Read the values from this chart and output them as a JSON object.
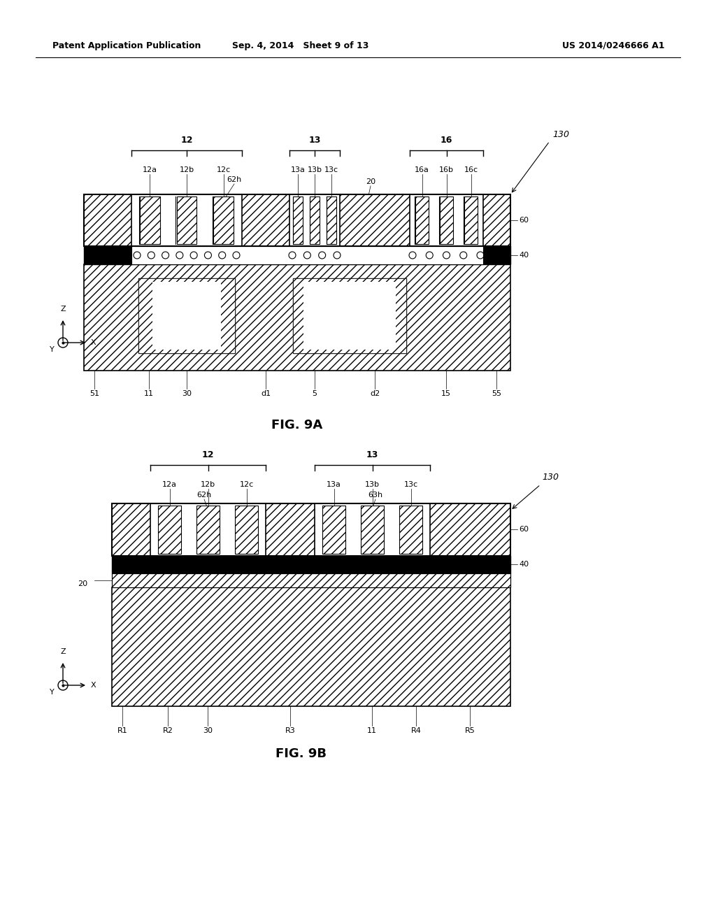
{
  "header_left": "Patent Application Publication",
  "header_mid": "Sep. 4, 2014   Sheet 9 of 13",
  "header_right": "US 2014/0246666 A1",
  "fig_a_label": "FIG. 9A",
  "fig_b_label": "FIG. 9B",
  "background": "#ffffff"
}
